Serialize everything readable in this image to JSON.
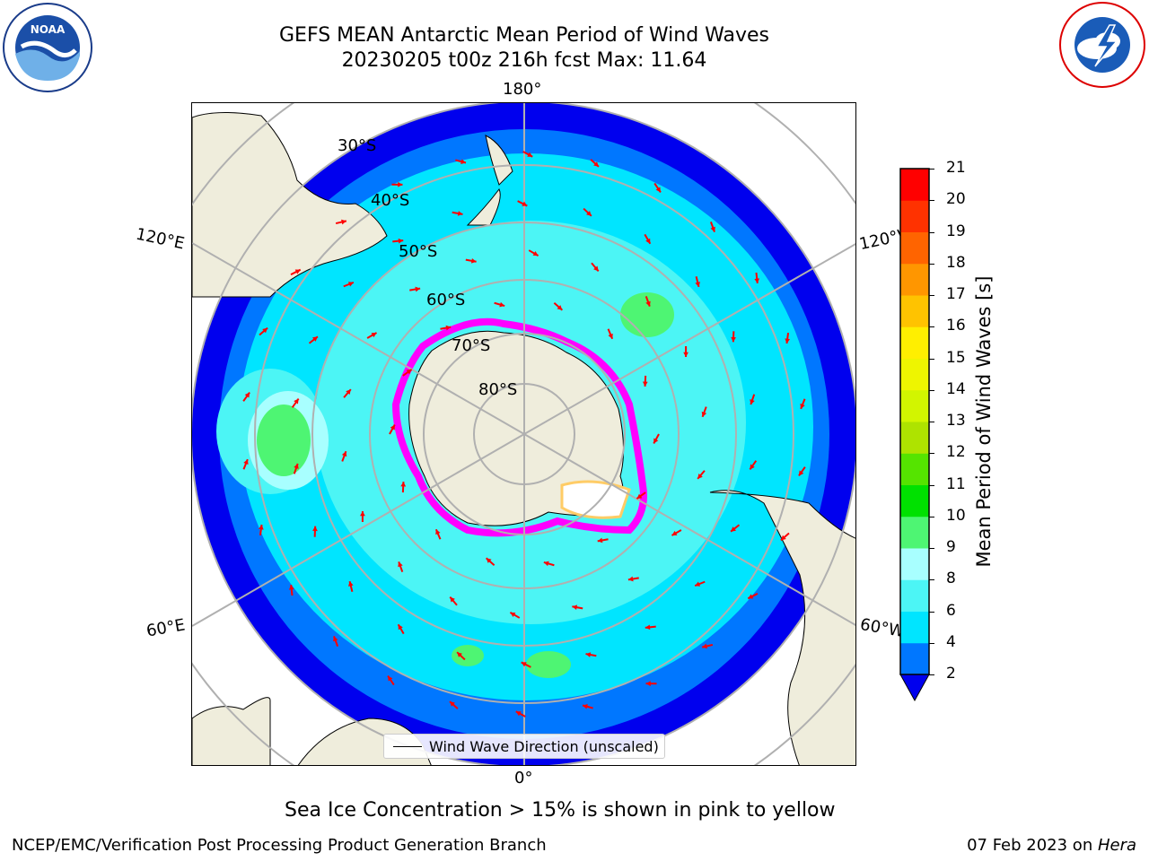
{
  "title": {
    "line1": "GEFS MEAN Antarctic Mean Period of Wind Waves",
    "line2": "20230205 t00z 216h fcst   Max: 11.64"
  },
  "map": {
    "projection": "south polar stereographic",
    "longitude_labels": {
      "top": "180°",
      "bottom": "0°",
      "upper_left": "120°E",
      "upper_right": "120°W",
      "lower_left": "60°E",
      "lower_right": "60°W"
    },
    "latitude_labels": [
      "30°S",
      "40°S",
      "50°S",
      "60°S",
      "70°S",
      "80°S"
    ],
    "legend": "Wind Wave Direction (unscaled)",
    "arrow_color": "#ff0000",
    "land_color": "#efeddc",
    "ice_colors": [
      "#ff00ff",
      "#ffff66"
    ]
  },
  "colorbar": {
    "label": "Mean Period of Wind Waves [s]",
    "ticks": [
      "2",
      "4",
      "6",
      "8",
      "9",
      "10",
      "11",
      "12",
      "13",
      "14",
      "15",
      "16",
      "17",
      "18",
      "19",
      "20",
      "21"
    ],
    "colors": [
      "#0000ee",
      "#0077ff",
      "#00e5ff",
      "#4cf5f5",
      "#a8ffff",
      "#4ef573",
      "#00e100",
      "#55e400",
      "#aee300",
      "#d2f500",
      "#eef500",
      "#ffef00",
      "#ffc300",
      "#ff9600",
      "#ff6400",
      "#ff3200",
      "#ff0000"
    ]
  },
  "caption": "Sea Ice Concentration > 15% is shown in pink to yellow",
  "footer": {
    "left": "NCEP/EMC/Verification Post Processing Product Generation Branch",
    "right_prefix": "07 Feb 2023 on ",
    "right_machine": "Hera"
  }
}
